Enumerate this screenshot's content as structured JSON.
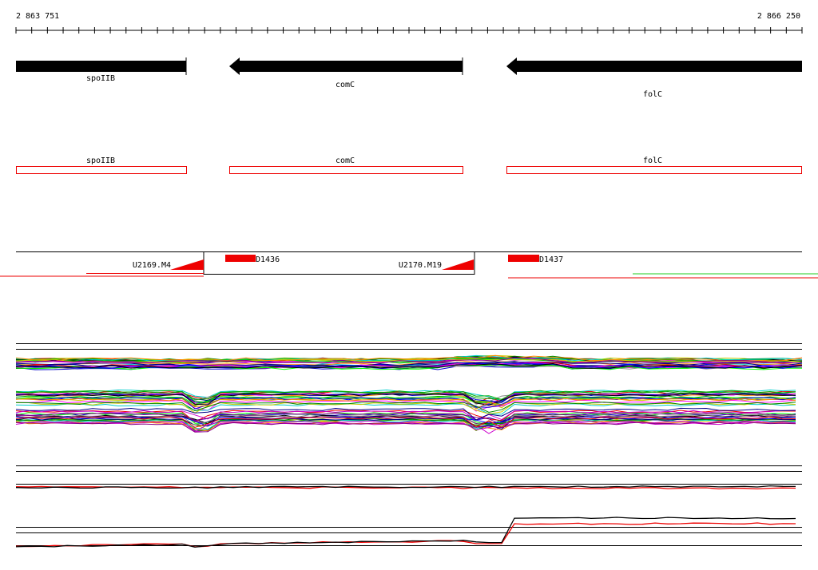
{
  "ruler": {
    "start": "2 863 751",
    "end": "2 866 250"
  },
  "genes": [
    {
      "label": "spoIIB"
    },
    {
      "label": "comC"
    },
    {
      "label": "folC"
    }
  ],
  "annotations": [
    {
      "label": "spoIIB"
    },
    {
      "label": "comC"
    },
    {
      "label": "folC"
    }
  ],
  "features": [
    {
      "label": "U2169.M4"
    },
    {
      "label": "D1436"
    },
    {
      "label": "U2170.M19"
    },
    {
      "label": "D1437"
    }
  ]
}
